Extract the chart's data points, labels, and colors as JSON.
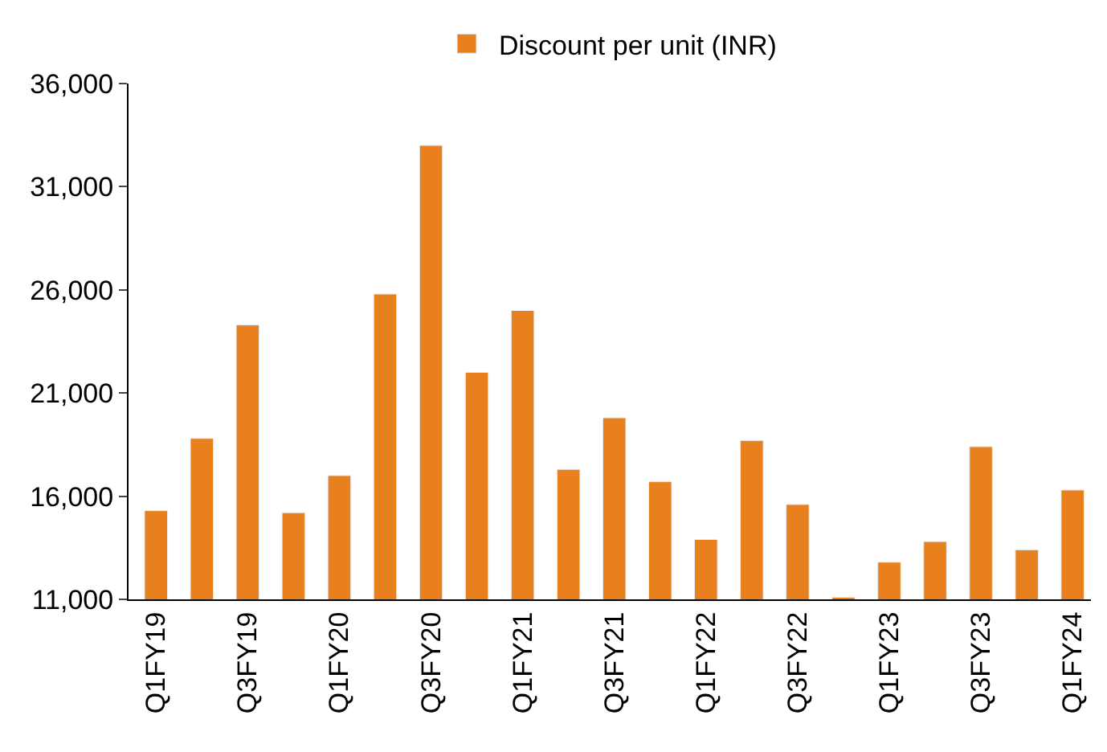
{
  "chart_data": {
    "type": "bar",
    "categories": [
      "Q1FY19",
      null,
      "Q3FY19",
      null,
      "Q1FY20",
      null,
      "Q3FY20",
      null,
      "Q1FY21",
      null,
      "Q3FY21",
      null,
      "Q1FY22",
      null,
      "Q3FY22",
      null,
      "Q1FY23",
      null,
      "Q3FY23",
      null,
      "Q1FY24"
    ],
    "series": [
      {
        "name": "Discount per unit (INR)",
        "color": "#e8801e",
        "values": [
          15300,
          18800,
          24300,
          15200,
          17000,
          25800,
          33000,
          22000,
          25000,
          17300,
          19800,
          16700,
          13900,
          18700,
          15600,
          11100,
          12800,
          13800,
          18400,
          13400,
          16300
        ]
      }
    ],
    "ylim": [
      11000,
      36000
    ],
    "yticks": [
      {
        "value": 11000,
        "label": "11,000"
      },
      {
        "value": 16000,
        "label": "16,000"
      },
      {
        "value": 21000,
        "label": "21,000"
      },
      {
        "value": 26000,
        "label": "26,000"
      },
      {
        "value": 31000,
        "label": "31,000"
      },
      {
        "value": 36000,
        "label": "36,000"
      }
    ],
    "legend": "top"
  }
}
